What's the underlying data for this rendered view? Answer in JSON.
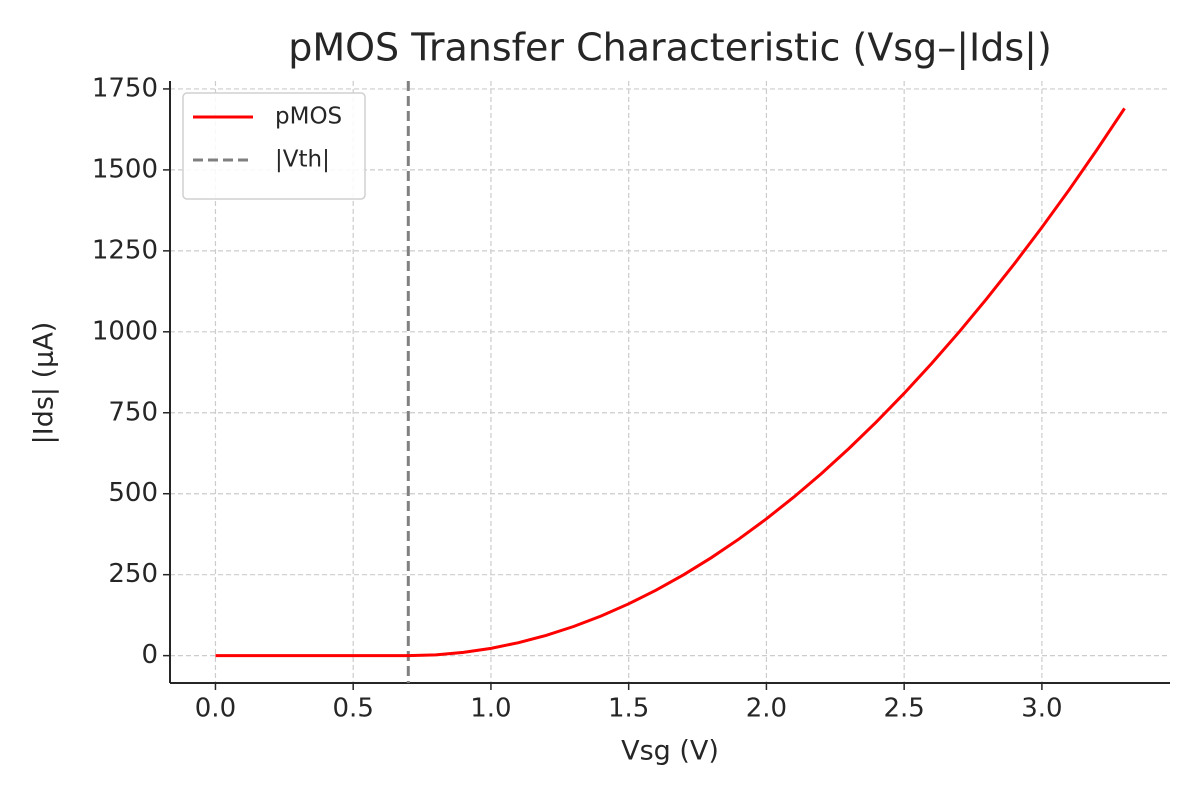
{
  "chart_data": {
    "type": "line",
    "title": "pMOS Transfer Characteristic (Vsg–|Ids|)",
    "x_label": "Vsg (V)",
    "y_label": "|Ids| (µA)",
    "x": [
      0.0,
      0.1,
      0.2,
      0.3,
      0.4,
      0.5,
      0.6,
      0.7,
      0.8,
      0.9,
      1.0,
      1.1,
      1.2,
      1.3,
      1.4,
      1.5,
      1.6,
      1.7,
      1.8,
      1.9,
      2.0,
      2.1,
      2.2,
      2.3,
      2.4,
      2.5,
      2.6,
      2.7,
      2.8,
      2.9,
      3.0,
      3.1,
      3.2,
      3.3
    ],
    "series": [
      {
        "name": "pMOS",
        "color": "#ff0000",
        "values": [
          0,
          0,
          0,
          0,
          0,
          0,
          0,
          0,
          2.5,
          10,
          22.5,
          40,
          62.5,
          90,
          122.5,
          160,
          202.5,
          250,
          302.5,
          360,
          422.5,
          490,
          562.5,
          640,
          722.5,
          810,
          902.5,
          1000,
          1102.5,
          1210,
          1322.5,
          1440,
          1562.5,
          1690
        ]
      }
    ],
    "vlines": [
      {
        "name": "|Vth|",
        "x": 0.7,
        "color": "#808080"
      }
    ],
    "xlim": [
      -0.165,
      3.465
    ],
    "ylim": [
      -84.5,
      1774.5
    ],
    "xticks": [
      {
        "value": 0,
        "label": "0.0"
      },
      {
        "value": 0.5,
        "label": "0.5"
      },
      {
        "value": 1,
        "label": "1.0"
      },
      {
        "value": 1.5,
        "label": "1.5"
      },
      {
        "value": 2,
        "label": "2.0"
      },
      {
        "value": 2.5,
        "label": "2.5"
      },
      {
        "value": 3,
        "label": "3.0"
      }
    ],
    "yticks": [
      0,
      250,
      500,
      750,
      1000,
      1250,
      1500,
      1750
    ],
    "grid": true,
    "legend": "upper left"
  }
}
